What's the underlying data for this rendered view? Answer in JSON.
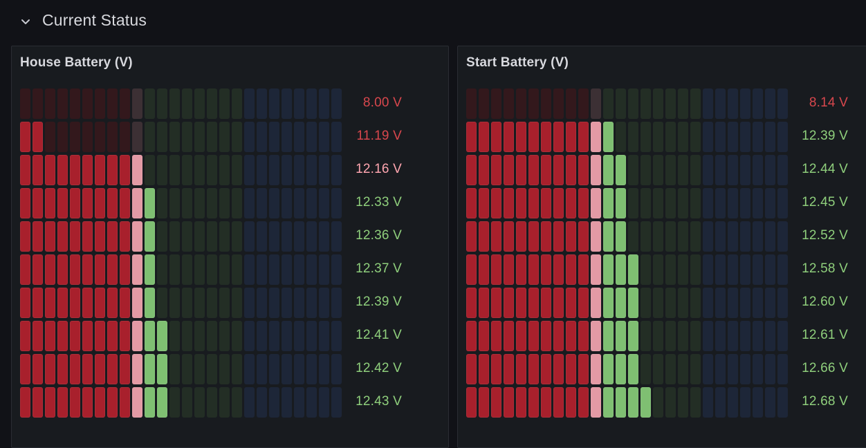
{
  "row": {
    "title": "Current Status",
    "chevron_icon": "chevron-down-icon"
  },
  "colors": {
    "red_on": "#a8202c",
    "red_off": "#33181c",
    "pink_on": "#e39aa5",
    "pink_off": "#3c3034",
    "green_on": "#7fbf72",
    "green_off": "#232e25",
    "blue_off": "#1d2638",
    "value_red": "#d8474d",
    "value_pink": "#ffa6b0",
    "value_green": "#8fcf7c"
  },
  "panels": [
    {
      "id": "house",
      "title": "House Battery (V)",
      "scale": {
        "cells": 26,
        "red_cells": 9,
        "pink_cells": 1,
        "green_cells": 8,
        "blue_cells": 8
      },
      "gauges": [
        {
          "value": "8.00 V",
          "status": "red",
          "lit_cells": 0
        },
        {
          "value": "11.19 V",
          "status": "red",
          "lit_cells": 2
        },
        {
          "value": "12.16 V",
          "status": "pink",
          "lit_cells": 10
        },
        {
          "value": "12.33 V",
          "status": "green",
          "lit_cells": 11
        },
        {
          "value": "12.36 V",
          "status": "green",
          "lit_cells": 11
        },
        {
          "value": "12.37 V",
          "status": "green",
          "lit_cells": 11
        },
        {
          "value": "12.39 V",
          "status": "green",
          "lit_cells": 11
        },
        {
          "value": "12.41 V",
          "status": "green",
          "lit_cells": 12
        },
        {
          "value": "12.42 V",
          "status": "green",
          "lit_cells": 12
        },
        {
          "value": "12.43 V",
          "status": "green",
          "lit_cells": 12
        }
      ]
    },
    {
      "id": "start",
      "title": "Start Battery (V)",
      "scale": {
        "cells": 26,
        "red_cells": 10,
        "pink_cells": 1,
        "green_cells": 8,
        "blue_cells": 7
      },
      "gauges": [
        {
          "value": "8.14 V",
          "status": "red",
          "lit_cells": 0
        },
        {
          "value": "12.39 V",
          "status": "green",
          "lit_cells": 12
        },
        {
          "value": "12.44 V",
          "status": "green",
          "lit_cells": 13
        },
        {
          "value": "12.45 V",
          "status": "green",
          "lit_cells": 13
        },
        {
          "value": "12.52 V",
          "status": "green",
          "lit_cells": 13
        },
        {
          "value": "12.58 V",
          "status": "green",
          "lit_cells": 14
        },
        {
          "value": "12.60 V",
          "status": "green",
          "lit_cells": 14
        },
        {
          "value": "12.61 V",
          "status": "green",
          "lit_cells": 14
        },
        {
          "value": "12.66 V",
          "status": "green",
          "lit_cells": 14
        },
        {
          "value": "12.68 V",
          "status": "green",
          "lit_cells": 15
        }
      ]
    }
  ]
}
